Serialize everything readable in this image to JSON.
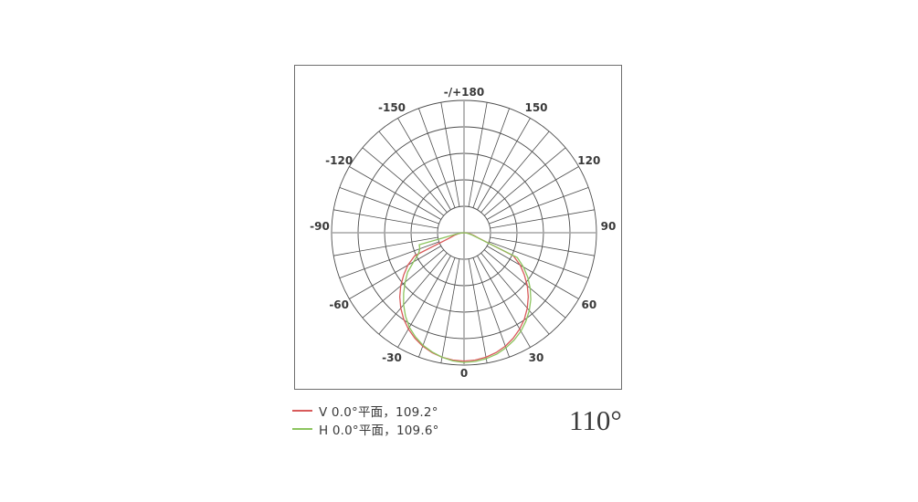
{
  "chart_data": {
    "type": "line",
    "subtype": "polar-photometric-intensity-distribution",
    "angle_unit": "degrees",
    "angle_tick_step_deg": 10,
    "angle_label_step_deg": 30,
    "angle_labels": [
      {
        "angle": 180,
        "text": "-/+180"
      },
      {
        "angle": 150,
        "text": "150"
      },
      {
        "angle": 120,
        "text": "120"
      },
      {
        "angle": 90,
        "text": "90"
      },
      {
        "angle": 60,
        "text": "60"
      },
      {
        "angle": 30,
        "text": "30"
      },
      {
        "angle": 0,
        "text": "0"
      },
      {
        "angle": -30,
        "text": "-30"
      },
      {
        "angle": -60,
        "text": "-60"
      },
      {
        "angle": -90,
        "text": "-90"
      },
      {
        "angle": -120,
        "text": "-120"
      },
      {
        "angle": -150,
        "text": "-150"
      }
    ],
    "radial_rings_fraction": [
      0.2,
      0.4,
      0.6,
      0.8,
      1.0
    ],
    "grid_color": "#4d4d4d",
    "axis_color": "#a6a6a6",
    "label_color": "#3a3a3a",
    "frame_color": "#6e6e6e",
    "series": [
      {
        "name": "V 0.0°平面，109.2°",
        "plane": "V 0.0°",
        "beam_angle": "109.2°",
        "color": "#d85a5a",
        "points": [
          [
            -90,
            0
          ],
          [
            -85,
            0.02
          ],
          [
            -80,
            0.045
          ],
          [
            -75,
            0.075
          ],
          [
            -70,
            0.115
          ],
          [
            -65,
            0.41
          ],
          [
            -60,
            0.49
          ],
          [
            -55,
            0.556
          ],
          [
            -50,
            0.624
          ],
          [
            -45,
            0.686
          ],
          [
            -40,
            0.743
          ],
          [
            -35,
            0.795
          ],
          [
            -30,
            0.84
          ],
          [
            -25,
            0.879
          ],
          [
            -20,
            0.912
          ],
          [
            -15,
            0.937
          ],
          [
            -10,
            0.955
          ],
          [
            -5,
            0.966
          ],
          [
            0,
            0.97
          ],
          [
            5,
            0.966
          ],
          [
            10,
            0.955
          ],
          [
            15,
            0.937
          ],
          [
            20,
            0.912
          ],
          [
            25,
            0.879
          ],
          [
            30,
            0.84
          ],
          [
            35,
            0.795
          ],
          [
            40,
            0.743
          ],
          [
            45,
            0.686
          ],
          [
            50,
            0.624
          ],
          [
            55,
            0.556
          ],
          [
            60,
            0.49
          ],
          [
            65,
            0.41
          ],
          [
            70,
            0.115
          ],
          [
            75,
            0.075
          ],
          [
            80,
            0.045
          ],
          [
            85,
            0.02
          ],
          [
            90,
            0
          ]
        ]
      },
      {
        "name": "H 0.0°平面，109.6°",
        "plane": "H 0.0°",
        "beam_angle": "109.6°",
        "color": "#8cc45e",
        "points": [
          [
            -90,
            0
          ],
          [
            -85,
            0.025
          ],
          [
            -80,
            0.06
          ],
          [
            -75,
            0.35
          ],
          [
            -70,
            0.355
          ],
          [
            -65,
            0.38
          ],
          [
            -60,
            0.44
          ],
          [
            -55,
            0.52
          ],
          [
            -50,
            0.58
          ],
          [
            -45,
            0.645
          ],
          [
            -40,
            0.71
          ],
          [
            -35,
            0.77
          ],
          [
            -30,
            0.825
          ],
          [
            -25,
            0.868
          ],
          [
            -20,
            0.905
          ],
          [
            -15,
            0.932
          ],
          [
            -10,
            0.955
          ],
          [
            -5,
            0.972
          ],
          [
            0,
            0.98
          ],
          [
            5,
            0.976
          ],
          [
            10,
            0.966
          ],
          [
            15,
            0.95
          ],
          [
            20,
            0.925
          ],
          [
            25,
            0.895
          ],
          [
            30,
            0.859
          ],
          [
            35,
            0.815
          ],
          [
            40,
            0.767
          ],
          [
            45,
            0.713
          ],
          [
            50,
            0.652
          ],
          [
            55,
            0.588
          ],
          [
            60,
            0.518
          ],
          [
            65,
            0.444
          ],
          [
            70,
            0.105
          ],
          [
            75,
            0.06
          ],
          [
            80,
            0.03
          ],
          [
            85,
            0.012
          ],
          [
            90,
            0
          ]
        ]
      }
    ]
  },
  "legend": {
    "items": [
      {
        "label": "V 0.0°平面，109.2°",
        "color": "#d85a5a"
      },
      {
        "label": "H 0.0°平面，109.6°",
        "color": "#8cc45e"
      }
    ]
  },
  "summary": {
    "beam_angle_label": "110°"
  }
}
